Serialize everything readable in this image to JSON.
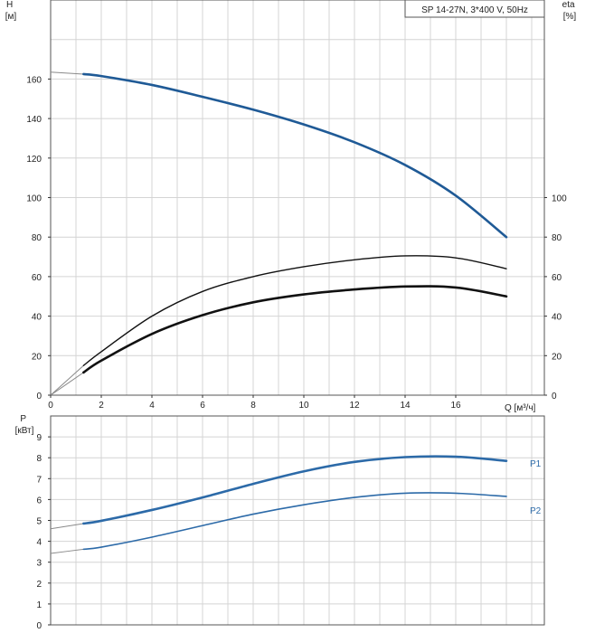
{
  "colors": {
    "head_curve": "#1f5a96",
    "power_curve": "#2c6aa8",
    "efficiency_curve": "#111111",
    "grid": "#d4d4d4",
    "axis": "#555555"
  },
  "chart_data": [
    {
      "type": "line",
      "title": "SP 14-27N, 3*400 V, 50Hz",
      "xlabel": "Q [м³/ч]",
      "ylabel": "H\n[м]",
      "ylabel_right": "eta\n[%]",
      "xlim": [
        0,
        19.5
      ],
      "ylim": [
        0,
        200
      ],
      "ylim_right": [
        0,
        200
      ],
      "x_ticks": [
        0,
        2,
        4,
        6,
        8,
        10,
        12,
        14,
        16
      ],
      "y_ticks": [
        0,
        20,
        40,
        60,
        80,
        100,
        120,
        140,
        160
      ],
      "y_ticks_right": [
        0,
        20,
        40,
        60,
        80,
        100
      ],
      "grid": true,
      "series": [
        {
          "key": "head",
          "axis": "left",
          "x": [
            1.3,
            2,
            4,
            6,
            8,
            10,
            12,
            14,
            16,
            18
          ],
          "y": [
            162.5,
            161.5,
            157,
            151,
            144.5,
            137,
            128,
            116.5,
            101,
            80
          ],
          "extension": {
            "x": [
              0,
              1.3
            ],
            "y": [
              163.5,
              162.5
            ]
          }
        },
        {
          "key": "eta_unit",
          "axis": "right",
          "x": [
            1.3,
            2,
            4,
            6,
            8,
            10,
            12,
            14,
            16,
            18
          ],
          "y": [
            15,
            22,
            40,
            52.5,
            60,
            65,
            68.5,
            70.5,
            69.5,
            64
          ],
          "extension": {
            "x": [
              0,
              1.3
            ],
            "y": [
              0,
              15
            ]
          }
        },
        {
          "key": "eta_pump",
          "axis": "right",
          "x": [
            1.3,
            2,
            4,
            6,
            8,
            10,
            12,
            14,
            16,
            18
          ],
          "y": [
            11.5,
            17.5,
            31,
            40.5,
            47,
            51,
            53.5,
            55,
            54.5,
            50
          ],
          "extension": {
            "x": [
              0,
              1.3
            ],
            "y": [
              0,
              11.5
            ]
          }
        }
      ]
    },
    {
      "type": "line",
      "ylabel": "P\n[кВт]",
      "xlim": [
        0,
        19.5
      ],
      "ylim": [
        0,
        10
      ],
      "y_ticks": [
        0,
        1,
        2,
        3,
        4,
        5,
        6,
        7,
        8,
        9
      ],
      "grid": true,
      "series": [
        {
          "name": "P1",
          "x": [
            1.3,
            2,
            4,
            6,
            8,
            10,
            12,
            14,
            16,
            18
          ],
          "y": [
            4.85,
            4.98,
            5.5,
            6.1,
            6.75,
            7.35,
            7.8,
            8.03,
            8.05,
            7.85
          ],
          "extension": {
            "x": [
              0,
              1.3
            ],
            "y": [
              4.6,
              4.85
            ]
          }
        },
        {
          "name": "P2",
          "x": [
            1.3,
            2,
            4,
            6,
            8,
            10,
            12,
            14,
            16,
            18
          ],
          "y": [
            3.62,
            3.72,
            4.2,
            4.75,
            5.3,
            5.75,
            6.1,
            6.3,
            6.3,
            6.15
          ],
          "extension": {
            "x": [
              0,
              1.3
            ],
            "y": [
              3.42,
              3.62
            ]
          }
        }
      ]
    }
  ]
}
